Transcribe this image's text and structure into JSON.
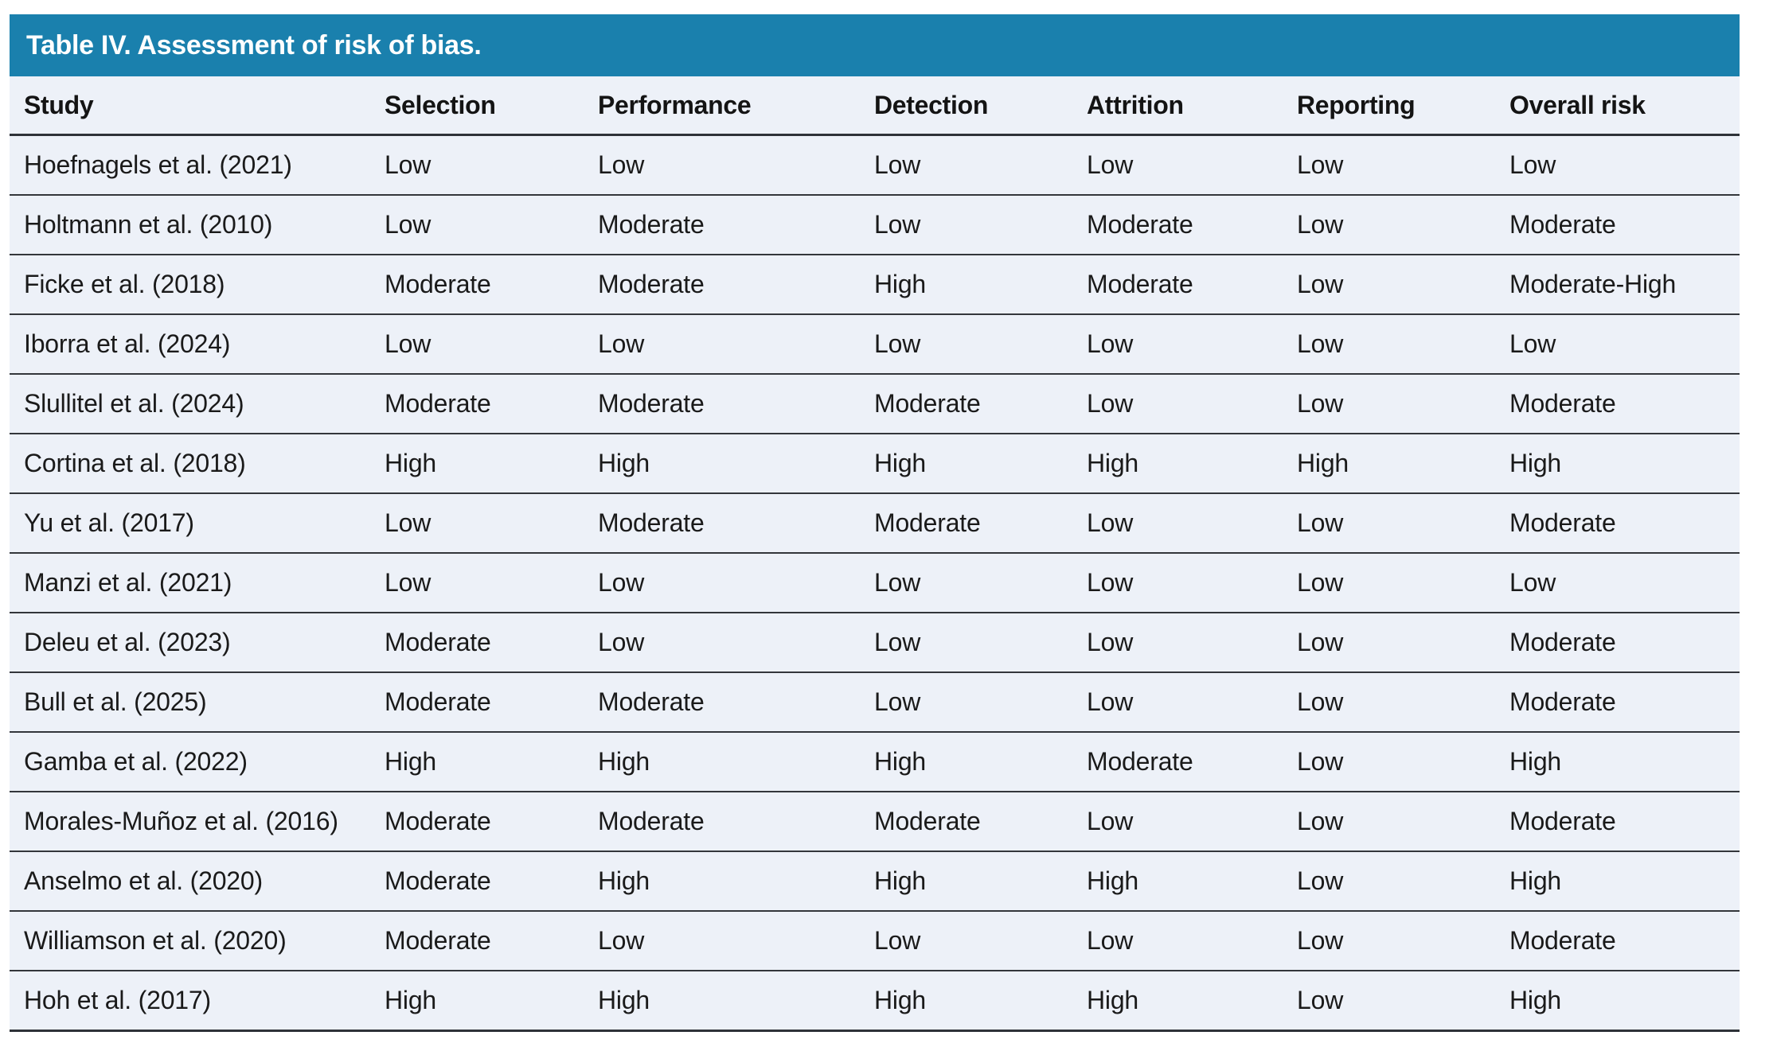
{
  "table": {
    "title": "Table IV. Assessment of risk of bias.",
    "columns": [
      "Study",
      "Selection",
      "Performance",
      "Detection",
      "Attrition",
      "Reporting",
      "Overall risk"
    ],
    "rows": [
      [
        "Hoefnagels et al. (2021)",
        "Low",
        "Low",
        "Low",
        "Low",
        "Low",
        "Low"
      ],
      [
        "Holtmann et al. (2010)",
        "Low",
        "Moderate",
        "Low",
        "Moderate",
        "Low",
        "Moderate"
      ],
      [
        "Ficke et al. (2018)",
        "Moderate",
        "Moderate",
        "High",
        "Moderate",
        "Low",
        "Moderate-High"
      ],
      [
        "Iborra et al. (2024)",
        "Low",
        "Low",
        "Low",
        "Low",
        "Low",
        "Low"
      ],
      [
        "Slullitel et al. (2024)",
        "Moderate",
        "Moderate",
        "Moderate",
        "Low",
        "Low",
        "Moderate"
      ],
      [
        "Cortina et al. (2018)",
        "High",
        "High",
        "High",
        "High",
        "High",
        "High"
      ],
      [
        "Yu et al. (2017)",
        "Low",
        "Moderate",
        "Moderate",
        "Low",
        "Low",
        "Moderate"
      ],
      [
        "Manzi et al. (2021)",
        "Low",
        "Low",
        "Low",
        "Low",
        "Low",
        "Low"
      ],
      [
        "Deleu et al. (2023)",
        "Moderate",
        "Low",
        "Low",
        "Low",
        "Low",
        "Moderate"
      ],
      [
        "Bull et al. (2025)",
        "Moderate",
        "Moderate",
        "Low",
        "Low",
        "Low",
        "Moderate"
      ],
      [
        "Gamba et al. (2022)",
        "High",
        "High",
        "High",
        "Moderate",
        "Low",
        "High"
      ],
      [
        "Morales-Muñoz et al. (2016)",
        "Moderate",
        "Moderate",
        "Moderate",
        "Low",
        "Low",
        "Moderate"
      ],
      [
        "Anselmo et al. (2020)",
        "Moderate",
        "High",
        "High",
        "High",
        "Low",
        "High"
      ],
      [
        "Williamson et al. (2020)",
        "Moderate",
        "Low",
        "Low",
        "Low",
        "Low",
        "Moderate"
      ],
      [
        "Hoh et al. (2017)",
        "High",
        "High",
        "High",
        "High",
        "Low",
        "High"
      ]
    ],
    "colors": {
      "title_bar_background": "#1a80ad",
      "title_text": "#ffffff",
      "row_background": "#edf1f8",
      "rule_color": "#33363b",
      "body_text": "#1a1a1a"
    }
  }
}
